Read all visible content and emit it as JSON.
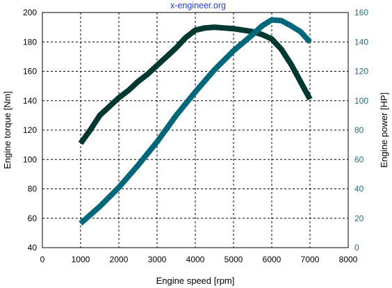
{
  "chart_data": {
    "type": "line",
    "watermark": "x-engineer.org",
    "xlabel": "Engine speed [rpm]",
    "ylabel_left": "Engine torque [Nm]",
    "ylabel_right": "Engine power [HP]",
    "xlim": [
      0,
      8000
    ],
    "xticks": [
      0,
      1000,
      2000,
      3000,
      4000,
      5000,
      6000,
      7000,
      8000
    ],
    "ylim_left": [
      40,
      200
    ],
    "yticks_left": [
      40,
      60,
      80,
      100,
      120,
      140,
      160,
      180,
      200
    ],
    "ylim_right": [
      0,
      160
    ],
    "yticks_right": [
      0,
      20,
      40,
      60,
      80,
      100,
      120,
      140,
      160
    ],
    "grid": true,
    "colors": {
      "torque": "#003a33",
      "power": "#006b7f",
      "right_axis_text": "#1f6f7d",
      "watermark": "#1f3fd1"
    },
    "series": [
      {
        "axis": "left",
        "x": [
          1000,
          1250,
          1500,
          1750,
          2000,
          2250,
          2500,
          2750,
          3000,
          3250,
          3500,
          3750,
          4000,
          4250,
          4500,
          4750,
          5000,
          5250,
          5500,
          5750,
          6000,
          6250,
          6500,
          6750,
          7000
        ],
        "values": [
          111,
          120,
          130,
          136,
          142,
          147,
          153,
          158,
          164,
          170,
          176,
          183,
          188,
          189.5,
          190,
          189.5,
          189,
          188,
          187,
          185,
          182,
          175,
          165,
          153,
          141
        ]
      },
      {
        "axis": "right",
        "x": [
          1000,
          1500,
          2000,
          2500,
          3000,
          3500,
          4000,
          4500,
          5000,
          5500,
          5750,
          6000,
          6250,
          6500,
          6750,
          7000
        ],
        "values": [
          16.5,
          28,
          41,
          56,
          72,
          90,
          106,
          121,
          134,
          145,
          151,
          155,
          154.5,
          151,
          147,
          140
        ]
      }
    ]
  }
}
